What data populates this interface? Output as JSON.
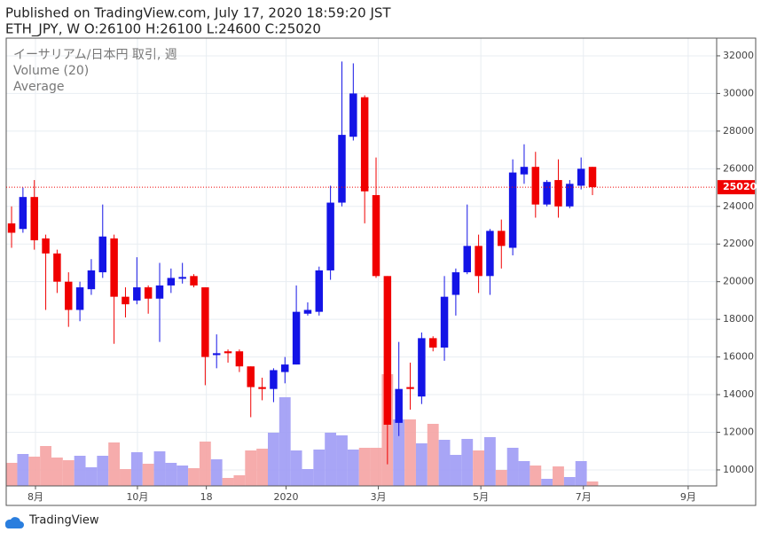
{
  "header": {
    "published": "Published on TradingView.com, July 17, 2020 18:59:20 JST",
    "symbol_line": "ETH_JPY, W O:26100 H:26100 L:24600 C:25020"
  },
  "chart_data": {
    "type": "candlestick",
    "legend": {
      "title": "イーサリアム/日本円 取引, 週",
      "volume": "Volume (20)",
      "average": "Average"
    },
    "up_color": "#1414e6",
    "down_color": "#f00000",
    "up_volume_color": "#9e9bf5",
    "down_volume_color": "#f5a3a3",
    "open": [
      23100,
      22800,
      24500,
      22300,
      21500,
      20000,
      18500,
      19600,
      20500,
      22300,
      19200,
      19000,
      19700,
      19100,
      19800,
      20200,
      20300,
      19700,
      16100,
      16300,
      16300,
      15500,
      14400,
      14300,
      15200,
      15600,
      18300,
      18400,
      20600,
      24200,
      27700,
      29800,
      24600,
      20300,
      12500,
      14400,
      13900,
      17000,
      16500,
      19300,
      20500,
      21900,
      20300,
      22700,
      21800,
      25700,
      26100,
      24100,
      25400,
      24000,
      25100,
      26100
    ],
    "high": [
      24000,
      25000,
      25400,
      22500,
      21700,
      20500,
      20000,
      21200,
      24100,
      22500,
      19700,
      21300,
      19800,
      21000,
      20700,
      21000,
      20400,
      19700,
      17200,
      16400,
      16400,
      15500,
      14900,
      15400,
      16000,
      19800,
      18900,
      20800,
      25100,
      31700,
      31600,
      29900,
      26600,
      20300,
      16800,
      15700,
      17300,
      17100,
      20300,
      20700,
      24100,
      22500,
      22800,
      23300,
      26500,
      27300,
      26900,
      25400,
      26500,
      25400,
      26600,
      26100
    ],
    "low": [
      21800,
      22600,
      21700,
      18500,
      19400,
      17600,
      17900,
      19300,
      20200,
      16700,
      18100,
      18800,
      18300,
      16800,
      19400,
      19900,
      19700,
      14500,
      15400,
      15700,
      15200,
      12800,
      13700,
      13600,
      14600,
      15600,
      18200,
      18200,
      20100,
      24000,
      27500,
      23100,
      20200,
      10300,
      11800,
      13200,
      13500,
      16300,
      15800,
      18200,
      20400,
      19400,
      19300,
      20700,
      21400,
      25200,
      23400,
      24000,
      23400,
      23900,
      24900,
      24600
    ],
    "close": [
      22600,
      24500,
      22200,
      21500,
      20000,
      18500,
      19700,
      20600,
      22400,
      19200,
      18800,
      19700,
      19100,
      19800,
      20200,
      20250,
      19800,
      16000,
      16200,
      16200,
      15500,
      14400,
      14300,
      15300,
      15600,
      18400,
      18500,
      20600,
      24200,
      27800,
      30000,
      24800,
      20300,
      12400,
      14300,
      14300,
      17000,
      16500,
      19200,
      20500,
      21900,
      20300,
      22700,
      21900,
      25800,
      26100,
      24100,
      25300,
      24000,
      25200,
      26000,
      25020
    ],
    "volume": [
      26,
      36,
      33,
      45,
      32,
      29,
      34,
      21,
      34,
      49,
      19,
      38,
      25,
      39,
      26,
      23,
      20,
      50,
      30,
      9,
      12,
      40,
      42,
      60,
      100,
      40,
      19,
      41,
      60,
      57,
      41,
      43,
      43,
      126,
      75,
      75,
      48,
      70,
      52,
      35,
      53,
      40,
      55,
      18,
      43,
      28,
      23,
      8,
      22,
      10,
      28,
      5
    ],
    "last_price": 25020,
    "ylim": [
      9150,
      32940
    ],
    "yticks": [
      10000,
      12000,
      14000,
      16000,
      18000,
      20000,
      22000,
      24000,
      26000,
      28000,
      30000,
      32000
    ],
    "xlim": [
      -0.47,
      61.9
    ],
    "xticks": [
      {
        "value": 2.1,
        "label": "8月"
      },
      {
        "value": 11.05,
        "label": "10月"
      },
      {
        "value": 17.1,
        "label": "18"
      },
      {
        "value": 24.1,
        "label": "2020"
      },
      {
        "value": 32.2,
        "label": "3月"
      },
      {
        "value": 41.2,
        "label": "5月"
      },
      {
        "value": 50.2,
        "label": "7月"
      },
      {
        "value": 59.4,
        "label": "9月"
      }
    ],
    "grid": true
  },
  "footer": {
    "brand": "TradingView"
  }
}
